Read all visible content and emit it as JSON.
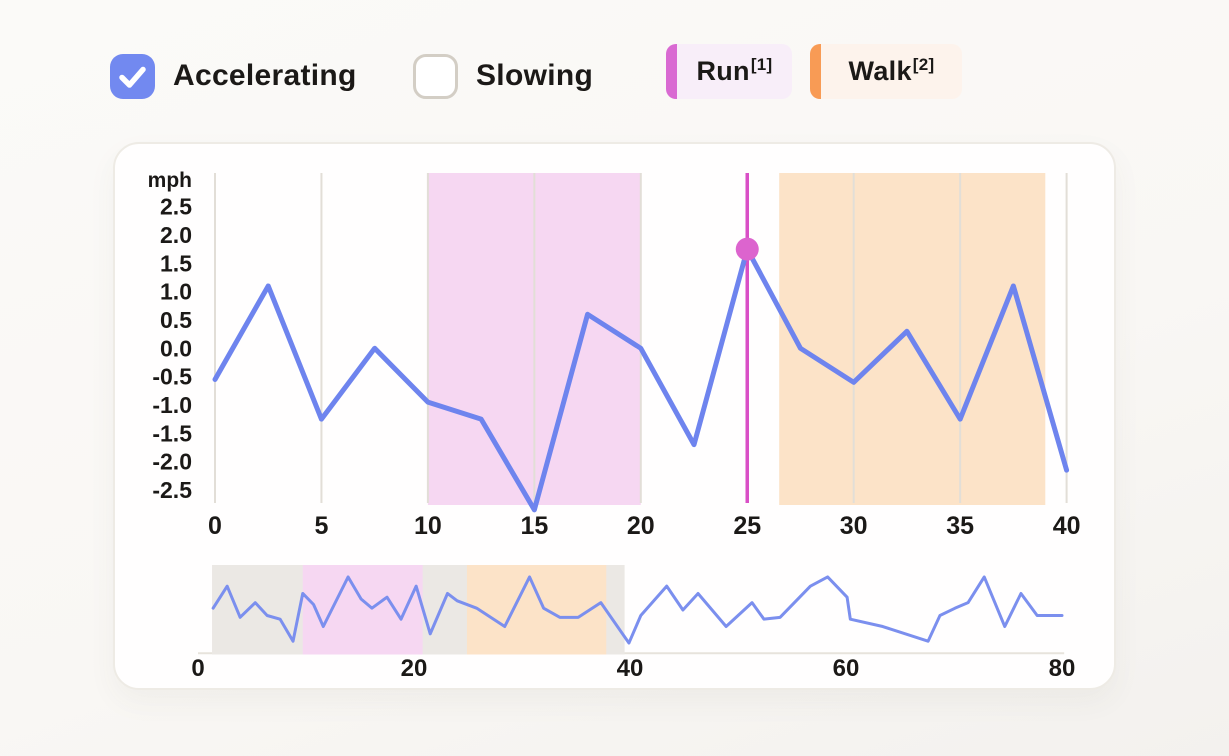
{
  "window": {
    "background": "#faf9f6",
    "text_color": "#1b1917"
  },
  "controls": {
    "accelerating": {
      "label": "Accelerating",
      "checked": true,
      "box_color": "#7289f0",
      "icon": "checkmark-icon"
    },
    "slowing": {
      "label": "Slowing",
      "checked": false,
      "box_border_color": "#d3cec5"
    }
  },
  "legend": {
    "run": {
      "label": "Run",
      "superscript": "[1]",
      "bar_color": "#d96ad2",
      "bg_color": "#f8eef9"
    },
    "walk": {
      "label": "Walk",
      "superscript": "[2]",
      "bar_color": "#f89b55",
      "bg_color": "#fdf3ec"
    }
  },
  "chart_data": [
    {
      "id": "speed-detail",
      "type": "line",
      "title": "",
      "xlabel": "",
      "ylabel": "mph",
      "xlim": [
        0,
        40
      ],
      "ylim": [
        -2.5,
        2.5
      ],
      "grid": "vertical-only",
      "legend_position": "none",
      "line_color": "#6e84ee",
      "grid_color": "#e2ded7",
      "x": [
        0,
        2.5,
        5,
        7.5,
        10,
        12.5,
        15,
        17.5,
        20,
        22.5,
        25,
        27.5,
        30,
        32.5,
        35,
        37.5,
        40
      ],
      "values": [
        -0.55,
        1.1,
        -1.25,
        0.0,
        -0.95,
        -1.25,
        -2.85,
        0.6,
        0.0,
        -1.7,
        1.75,
        0.0,
        -0.6,
        0.3,
        -1.25,
        1.1,
        -2.15
      ],
      "xticks": [
        "0",
        "5",
        "10",
        "15",
        "20",
        "25",
        "30",
        "35",
        "40"
      ],
      "yticks": [
        "2.5",
        "2.0",
        "1.5",
        "1.0",
        "0.5",
        "0.0",
        "-0.5",
        "-1.0",
        "-1.5",
        "-2.0",
        "-2.5"
      ],
      "regions": [
        {
          "name": "Run",
          "from": 10,
          "to": 20,
          "color": "#f6d7f2"
        },
        {
          "name": "Walk",
          "from": 26.5,
          "to": 39,
          "color": "#fce3c8"
        }
      ],
      "marker": {
        "x": 25,
        "y": 1.75,
        "line_color": "#d94fc6",
        "dot_color": "#dc64ce"
      }
    },
    {
      "id": "speed-overview",
      "type": "line",
      "title": "",
      "xlabel": "",
      "ylabel": "",
      "xlim": [
        0,
        80
      ],
      "grid": "off",
      "line_color": "#7b8fee",
      "axis_color": "#e7e3dc",
      "x": [
        1.4,
        2.7,
        3.9,
        5.3,
        6.4,
        7.6,
        8.8,
        9.7,
        10.7,
        11.6,
        13.9,
        15.1,
        16.1,
        17.5,
        18.8,
        20.2,
        21.5,
        23.1,
        24.0,
        25.8,
        28.4,
        30.7,
        32.0,
        33.5,
        35.2,
        37.3,
        39.9,
        41.0,
        43.4,
        44.9,
        46.3,
        48.9,
        51.3,
        52.4,
        53.9,
        56.7,
        58.3,
        60.1,
        60.4,
        63.4,
        67.6,
        68.7,
        70.1,
        71.3,
        72.8,
        74.7,
        76.2,
        77.7,
        80.0
      ],
      "values": [
        0.1,
        1.3,
        -0.4,
        0.4,
        -0.3,
        -0.5,
        -1.7,
        0.9,
        0.3,
        -0.9,
        1.8,
        0.6,
        0.1,
        0.7,
        -0.5,
        1.3,
        -1.3,
        0.9,
        0.5,
        0.1,
        -0.9,
        1.8,
        0.1,
        -0.4,
        -0.4,
        0.4,
        -1.8,
        -0.3,
        1.3,
        0.0,
        0.9,
        -0.9,
        0.4,
        -0.5,
        -0.4,
        1.3,
        1.8,
        0.7,
        -0.5,
        -0.9,
        -1.7,
        -0.3,
        0.1,
        0.4,
        1.8,
        -0.9,
        0.9,
        -0.3,
        -0.3
      ],
      "xticks": [
        "0",
        "20",
        "40",
        "60",
        "80"
      ],
      "bands": [
        {
          "name": "selection-window",
          "from": 1.3,
          "to": 39.5,
          "color": "#ebe8e4"
        },
        {
          "name": "Run",
          "from": 9.7,
          "to": 20.8,
          "color": "#f6d7f2"
        },
        {
          "name": "Walk",
          "from": 24.9,
          "to": 37.8,
          "color": "#fce3c8"
        }
      ]
    }
  ]
}
